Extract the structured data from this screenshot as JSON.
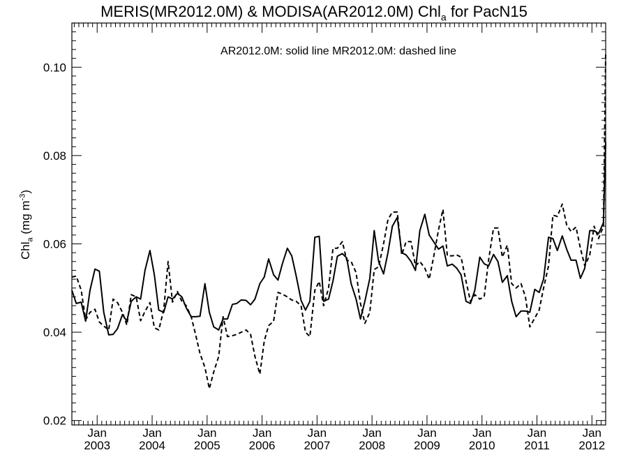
{
  "title": {
    "main": "MERIS(MR2012.0M) & MODISA(AR2012.0M)  Chl",
    "sub": "a",
    "tail": " for PacN15"
  },
  "ylabel": {
    "main": "Chl",
    "sub": "a",
    "unit_open": " (mg m",
    "sup": "-3",
    "unit_close": ")"
  },
  "annotation": "AR2012.0M: solid line   MR2012.0M: dashed line",
  "chart_data": {
    "type": "line",
    "title": "MERIS(MR2012.0M) & MODISA(AR2012.0M)  Chla for PacN15",
    "ylabel": "Chla (mg m-3)",
    "xlabel": "",
    "ylim": [
      0.019,
      0.11
    ],
    "xlim": [
      2002.54,
      2012.25
    ],
    "grid": false,
    "y_ticks": [
      0.02,
      0.04,
      0.06,
      0.08,
      0.1
    ],
    "y_tick_labels": [
      "0.02",
      "0.04",
      "0.06",
      "0.08",
      "0.10"
    ],
    "x_ticks": [
      2003,
      2004,
      2005,
      2006,
      2007,
      2008,
      2009,
      2010,
      2011,
      2012
    ],
    "x_tick_labels_top": [
      "Jan",
      "Jan",
      "Jan",
      "Jan",
      "Jan",
      "Jan",
      "Jan",
      "Jan",
      "Jan",
      "Jan"
    ],
    "x_tick_labels_bottom": [
      "2003",
      "2004",
      "2005",
      "2006",
      "2007",
      "2008",
      "2009",
      "2010",
      "2011",
      "2012"
    ],
    "series": [
      {
        "name": "AR2012.0M",
        "style": "solid",
        "color": "#000000",
        "x": [
          2002.54,
          2002.62,
          2002.71,
          2002.79,
          2002.87,
          2002.96,
          2003.04,
          2003.12,
          2003.21,
          2003.29,
          2003.37,
          2003.46,
          2003.54,
          2003.62,
          2003.71,
          2003.79,
          2003.87,
          2003.96,
          2004.04,
          2004.12,
          2004.21,
          2004.29,
          2004.37,
          2004.46,
          2004.54,
          2004.62,
          2004.71,
          2004.79,
          2004.87,
          2004.96,
          2005.04,
          2005.12,
          2005.21,
          2005.29,
          2005.37,
          2005.46,
          2005.54,
          2005.62,
          2005.71,
          2005.79,
          2005.87,
          2005.96,
          2006.04,
          2006.12,
          2006.21,
          2006.29,
          2006.37,
          2006.46,
          2006.54,
          2006.62,
          2006.71,
          2006.79,
          2006.87,
          2006.96,
          2007.04,
          2007.12,
          2007.21,
          2007.29,
          2007.37,
          2007.46,
          2007.54,
          2007.62,
          2007.71,
          2007.79,
          2007.87,
          2007.96,
          2008.04,
          2008.12,
          2008.21,
          2008.29,
          2008.37,
          2008.46,
          2008.54,
          2008.62,
          2008.71,
          2008.79,
          2008.87,
          2008.96,
          2009.04,
          2009.12,
          2009.21,
          2009.29,
          2009.37,
          2009.46,
          2009.54,
          2009.62,
          2009.71,
          2009.79,
          2009.87,
          2009.96,
          2010.04,
          2010.12,
          2010.21,
          2010.29,
          2010.37,
          2010.46,
          2010.54,
          2010.62,
          2010.71,
          2010.79,
          2010.87,
          2010.96,
          2011.04,
          2011.12,
          2011.21,
          2011.29,
          2011.37,
          2011.46,
          2011.54,
          2011.62,
          2011.71,
          2011.79,
          2011.87,
          2011.96,
          2012.04,
          2012.12,
          2012.21,
          2012.25
        ],
        "values": [
          0.0495,
          0.0465,
          0.0468,
          0.0425,
          0.0495,
          0.0543,
          0.0538,
          0.0445,
          0.0394,
          0.0395,
          0.0408,
          0.044,
          0.0425,
          0.047,
          0.048,
          0.0475,
          0.054,
          0.0585,
          0.053,
          0.045,
          0.0445,
          0.048,
          0.0475,
          0.0488,
          0.048,
          0.0455,
          0.0435,
          0.0435,
          0.0436,
          0.051,
          0.0445,
          0.0412,
          0.0405,
          0.043,
          0.043,
          0.0463,
          0.0465,
          0.0473,
          0.0472,
          0.0462,
          0.0475,
          0.051,
          0.0525,
          0.0566,
          0.053,
          0.0518,
          0.0555,
          0.059,
          0.0573,
          0.0528,
          0.0472,
          0.045,
          0.047,
          0.0615,
          0.0617,
          0.047,
          0.0475,
          0.0516,
          0.0572,
          0.0578,
          0.0568,
          0.051,
          0.0475,
          0.043,
          0.047,
          0.0522,
          0.063,
          0.056,
          0.0532,
          0.058,
          0.064,
          0.066,
          0.058,
          0.0575,
          0.056,
          0.054,
          0.063,
          0.0667,
          0.062,
          0.0605,
          0.0588,
          0.0595,
          0.055,
          0.0554,
          0.0545,
          0.053,
          0.047,
          0.0465,
          0.0495,
          0.057,
          0.0555,
          0.055,
          0.0576,
          0.056,
          0.0513,
          0.0528,
          0.047,
          0.0435,
          0.0448,
          0.0448,
          0.0445,
          0.0497,
          0.049,
          0.052,
          0.0615,
          0.0612,
          0.0585,
          0.0618,
          0.0588,
          0.0563,
          0.0563,
          0.0522,
          0.0545,
          0.063,
          0.063,
          0.0623,
          0.0648,
          0.083
        ]
      },
      {
        "name": "MR2012.0M",
        "style": "dashed",
        "color": "#000000",
        "x": [
          2002.54,
          2002.62,
          2002.71,
          2002.79,
          2002.87,
          2002.96,
          2003.04,
          2003.12,
          2003.21,
          2003.29,
          2003.37,
          2003.46,
          2003.54,
          2003.62,
          2003.71,
          2003.79,
          2003.87,
          2003.96,
          2004.04,
          2004.12,
          2004.21,
          2004.29,
          2004.37,
          2004.46,
          2004.54,
          2004.62,
          2004.71,
          2004.79,
          2004.87,
          2004.96,
          2005.04,
          2005.12,
          2005.21,
          2005.29,
          2005.37,
          2005.46,
          2005.54,
          2005.62,
          2005.71,
          2005.79,
          2005.87,
          2005.96,
          2006.04,
          2006.12,
          2006.21,
          2006.29,
          2006.37,
          2006.46,
          2006.54,
          2006.62,
          2006.71,
          2006.79,
          2006.87,
          2006.96,
          2007.04,
          2007.12,
          2007.21,
          2007.29,
          2007.37,
          2007.46,
          2007.54,
          2007.62,
          2007.71,
          2007.79,
          2007.87,
          2007.96,
          2008.04,
          2008.12,
          2008.21,
          2008.29,
          2008.37,
          2008.46,
          2008.54,
          2008.62,
          2008.71,
          2008.79,
          2008.87,
          2008.96,
          2009.04,
          2009.12,
          2009.21,
          2009.29,
          2009.37,
          2009.46,
          2009.54,
          2009.62,
          2009.71,
          2009.79,
          2009.87,
          2009.96,
          2010.04,
          2010.12,
          2010.21,
          2010.29,
          2010.37,
          2010.46,
          2010.54,
          2010.62,
          2010.71,
          2010.79,
          2010.87,
          2010.96,
          2011.04,
          2011.12,
          2011.21,
          2011.29,
          2011.37,
          2011.46,
          2011.54,
          2011.62,
          2011.71,
          2011.79,
          2011.87,
          2011.96,
          2012.04,
          2012.12,
          2012.21,
          2012.25
        ],
        "values": [
          0.0525,
          0.0527,
          0.0495,
          0.0428,
          0.0445,
          0.0452,
          0.0423,
          0.0414,
          0.0405,
          0.0475,
          0.0467,
          0.0445,
          0.0416,
          0.0485,
          0.048,
          0.0426,
          0.0447,
          0.0467,
          0.041,
          0.0405,
          0.045,
          0.056,
          0.0468,
          0.0492,
          0.047,
          0.046,
          0.0435,
          0.0395,
          0.0352,
          0.032,
          0.0272,
          0.031,
          0.0345,
          0.0435,
          0.039,
          0.0392,
          0.0395,
          0.04,
          0.0405,
          0.0395,
          0.0345,
          0.0305,
          0.038,
          0.0415,
          0.0425,
          0.049,
          0.0486,
          0.048,
          0.0473,
          0.047,
          0.046,
          0.04,
          0.039,
          0.0495,
          0.0515,
          0.046,
          0.05,
          0.059,
          0.059,
          0.0605,
          0.0563,
          0.056,
          0.0535,
          0.0465,
          0.042,
          0.0445,
          0.0542,
          0.0548,
          0.06,
          0.0655,
          0.0672,
          0.0672,
          0.0575,
          0.0605,
          0.0605,
          0.055,
          0.056,
          0.0545,
          0.052,
          0.057,
          0.0632,
          0.0678,
          0.0573,
          0.0573,
          0.0575,
          0.057,
          0.0515,
          0.047,
          0.0485,
          0.0475,
          0.048,
          0.0563,
          0.0636,
          0.0636,
          0.057,
          0.0597,
          0.051,
          0.05,
          0.051,
          0.048,
          0.0412,
          0.0432,
          0.045,
          0.05,
          0.055,
          0.0665,
          0.0662,
          0.069,
          0.0643,
          0.0628,
          0.0638,
          0.059,
          0.055,
          0.0575,
          0.064,
          0.0612,
          0.064,
          0.103
        ]
      }
    ]
  }
}
